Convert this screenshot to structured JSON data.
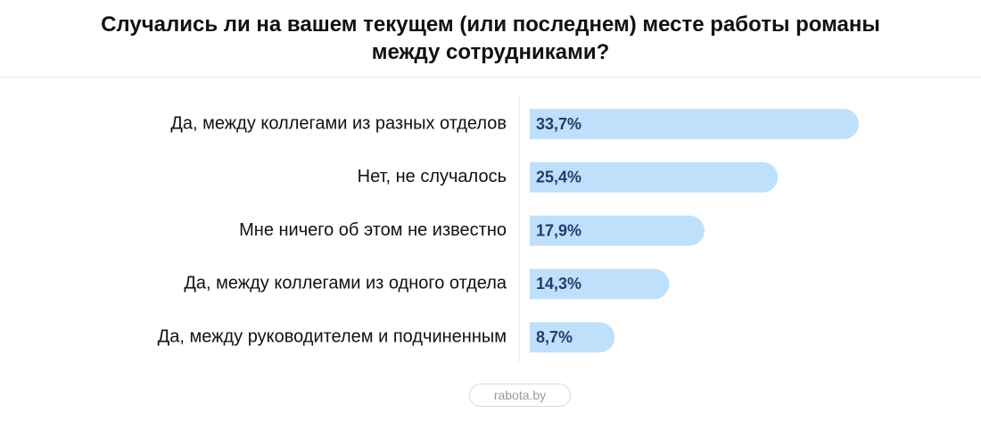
{
  "chart_data": {
    "type": "bar",
    "orientation": "horizontal",
    "title": "Случались ли на вашем текущем (или последнем) месте работы романы между сотрудниками?",
    "categories": [
      "Да, между коллегами из разных отделов",
      "Нет, не случалось",
      "Мне ничего об этом не известно",
      "Да, между коллегами из одного отдела",
      "Да, между руководителем и подчиненным"
    ],
    "values": [
      33.7,
      25.4,
      17.9,
      14.3,
      8.7
    ],
    "value_labels": [
      "33,7%",
      "25,4%",
      "17,9%",
      "14,3%",
      "8,7%"
    ],
    "color": "#bfe0fb",
    "label_color": "#1f3d6e",
    "source": "rabota.by"
  }
}
